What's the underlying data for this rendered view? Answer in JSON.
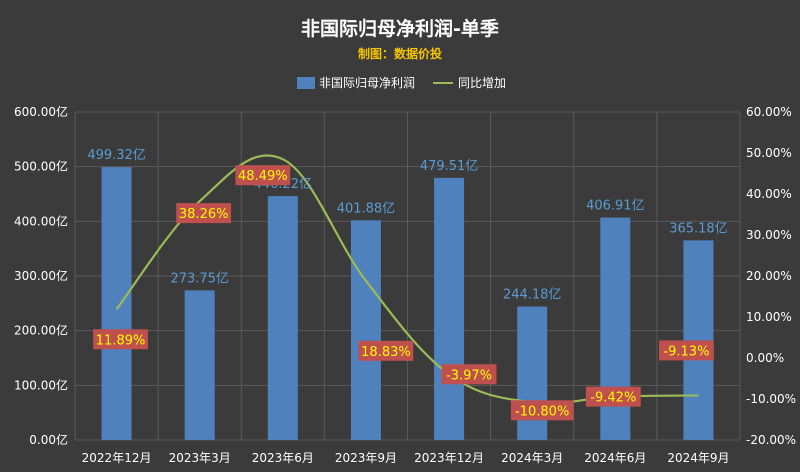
{
  "chart_data": {
    "type": "bar",
    "title": "非国际归母净利润-单季",
    "subtitle": "制图：数据价投",
    "categories": [
      "2022年12月",
      "2023年3月",
      "2023年6月",
      "2023年9月",
      "2023年12月",
      "2024年3月",
      "2024年6月",
      "2024年9月"
    ],
    "series": [
      {
        "name": "非国际归母净利润",
        "type": "bar",
        "axis": "left",
        "values": [
          499.32,
          273.75,
          446.22,
          401.88,
          479.51,
          244.18,
          406.91,
          365.18
        ],
        "labels": [
          "499.32亿",
          "273.75亿",
          "446.22亿",
          "401.88亿",
          "479.51亿",
          "244.18亿",
          "406.91亿",
          "365.18亿"
        ]
      },
      {
        "name": "同比增加",
        "type": "line",
        "axis": "right",
        "values": [
          11.89,
          38.26,
          48.49,
          18.83,
          -3.97,
          -10.8,
          -9.42,
          -9.13
        ],
        "labels": [
          "11.89%",
          "38.26%",
          "48.49%",
          "18.83%",
          "-3.97%",
          "-10.80%",
          "-9.42%",
          "-9.13%"
        ]
      }
    ],
    "y_left": {
      "min": 0,
      "max": 600,
      "ticks": [
        "0.00亿",
        "100.00亿",
        "200.00亿",
        "300.00亿",
        "400.00亿",
        "500.00亿",
        "600.00亿"
      ]
    },
    "y_right": {
      "min": -20,
      "max": 60,
      "ticks": [
        "-20.00%",
        "-10.00%",
        "0.00%",
        "10.00%",
        "20.00%",
        "30.00%",
        "40.00%",
        "50.00%",
        "60.00%"
      ]
    },
    "grid": true,
    "legend_position": "top-center",
    "colors": {
      "bar": "#4f81bd",
      "line": "#9bbb59",
      "background": "#3b3b3b",
      "label_bg": "#c0504d",
      "label_text": "#ffff00"
    }
  }
}
